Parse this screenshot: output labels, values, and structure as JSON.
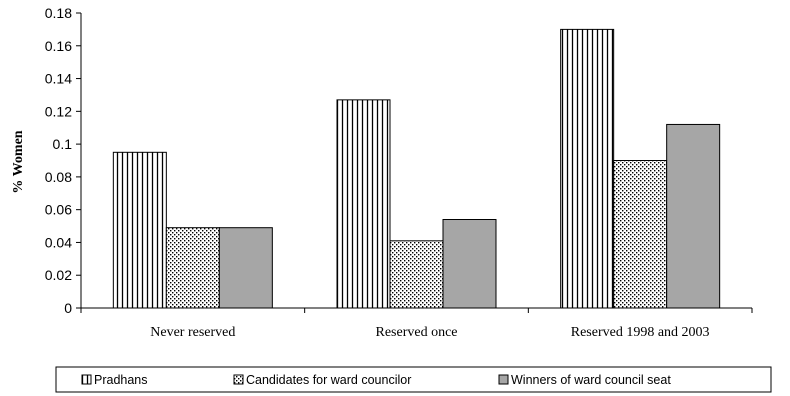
{
  "chart_data": {
    "type": "bar",
    "title": "",
    "xlabel": "",
    "ylabel": "% Women",
    "ylim": [
      0,
      0.18
    ],
    "yticks": [
      "0",
      "0.02",
      "0.04",
      "0.06",
      "0.08",
      "0.1",
      "0.12",
      "0.14",
      "0.16",
      "0.18"
    ],
    "categories": [
      "Never reserved",
      "Reserved once",
      "Reserved 1998 and 2003"
    ],
    "series": [
      {
        "name": "Pradhans",
        "values": [
          0.095,
          0.127,
          0.17
        ],
        "pattern": "vertical-stripes",
        "color": "#ffffff"
      },
      {
        "name": "Candidates for ward councilor",
        "values": [
          0.049,
          0.041,
          0.09
        ],
        "pattern": "dots",
        "color": "#ffffff"
      },
      {
        "name": "Winners of ward council seat",
        "values": [
          0.049,
          0.054,
          0.112
        ],
        "pattern": "solid",
        "color": "#a6a6a6"
      }
    ],
    "grid": false,
    "legend_position": "bottom"
  }
}
